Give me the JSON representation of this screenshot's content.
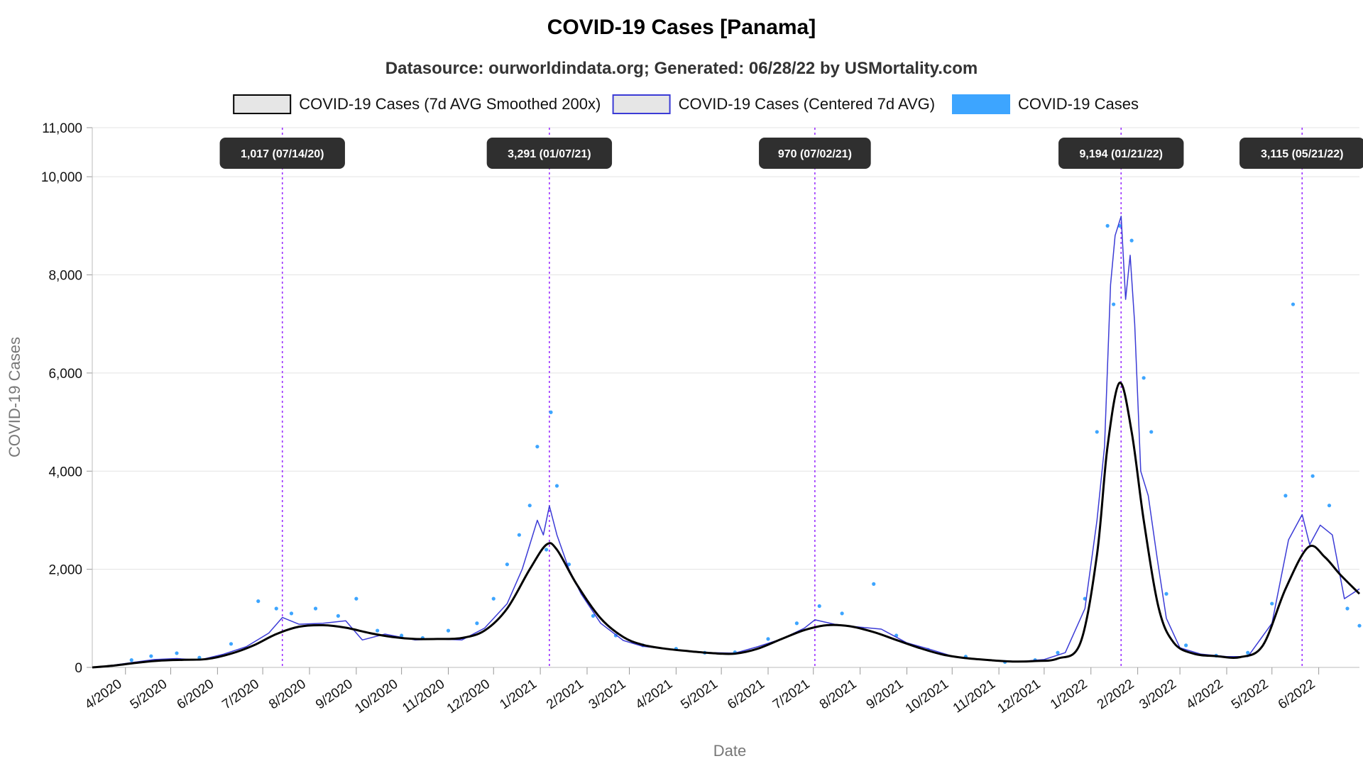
{
  "chart_data": {
    "type": "line",
    "title": "COVID-19 Cases [Panama]",
    "subtitle": "Datasource: ourworldindata.org; Generated: 06/28/22 by USMortality.com",
    "xlabel": "Date",
    "ylabel": "COVID-19 Cases",
    "ylim": [
      0,
      11000
    ],
    "y_ticks": [
      0,
      2000,
      4000,
      6000,
      8000,
      10000,
      11000
    ],
    "y_tick_labels": [
      "0",
      "2,000",
      "4,000",
      "6,000",
      "8,000",
      "10,000",
      "11,000"
    ],
    "x_range": [
      "2020-03-10",
      "2022-06-28"
    ],
    "x_ticks": [
      {
        "date": "2020-04-01",
        "label": "4/2020"
      },
      {
        "date": "2020-05-01",
        "label": "5/2020"
      },
      {
        "date": "2020-06-01",
        "label": "6/2020"
      },
      {
        "date": "2020-07-01",
        "label": "7/2020"
      },
      {
        "date": "2020-08-01",
        "label": "8/2020"
      },
      {
        "date": "2020-09-01",
        "label": "9/2020"
      },
      {
        "date": "2020-10-01",
        "label": "10/2020"
      },
      {
        "date": "2020-11-01",
        "label": "11/2020"
      },
      {
        "date": "2020-12-01",
        "label": "12/2020"
      },
      {
        "date": "2021-01-01",
        "label": "1/2021"
      },
      {
        "date": "2021-02-01",
        "label": "2/2021"
      },
      {
        "date": "2021-03-01",
        "label": "3/2021"
      },
      {
        "date": "2021-04-01",
        "label": "4/2021"
      },
      {
        "date": "2021-05-01",
        "label": "5/2021"
      },
      {
        "date": "2021-06-01",
        "label": "6/2021"
      },
      {
        "date": "2021-07-01",
        "label": "7/2021"
      },
      {
        "date": "2021-08-01",
        "label": "8/2021"
      },
      {
        "date": "2021-09-01",
        "label": "9/2021"
      },
      {
        "date": "2021-10-01",
        "label": "10/2021"
      },
      {
        "date": "2021-11-01",
        "label": "11/2021"
      },
      {
        "date": "2021-12-01",
        "label": "12/2021"
      },
      {
        "date": "2022-01-01",
        "label": "1/2022"
      },
      {
        "date": "2022-02-01",
        "label": "2/2022"
      },
      {
        "date": "2022-03-01",
        "label": "3/2022"
      },
      {
        "date": "2022-04-01",
        "label": "4/2022"
      },
      {
        "date": "2022-05-01",
        "label": "5/2022"
      },
      {
        "date": "2022-06-01",
        "label": "6/2022"
      }
    ],
    "grid": true,
    "legend_position": "top-center",
    "legend": [
      {
        "label": "COVID-19 Cases (7d AVG Smoothed 200x)",
        "stroke": "#000000",
        "fill": "#e6e6e6"
      },
      {
        "label": "COVID-19 Cases (Centered 7d AVG)",
        "stroke": "#3b3bd6",
        "fill": "#e6e6e6"
      },
      {
        "label": "COVID-19 Cases",
        "stroke": "#3da5ff",
        "fill": "#3da5ff"
      }
    ],
    "annotations": [
      {
        "date": "2020-07-14",
        "label": "1,017 (07/14/20)"
      },
      {
        "date": "2021-01-07",
        "label": "3,291 (01/07/21)"
      },
      {
        "date": "2021-07-02",
        "label": "970 (07/02/21)"
      },
      {
        "date": "2022-01-21",
        "label": "9,194 (01/21/22)"
      },
      {
        "date": "2022-05-21",
        "label": "3,115 (05/21/22)"
      }
    ],
    "series": [
      {
        "name": "COVID-19 Cases (7d AVG Smoothed 200x)",
        "color": "#000000",
        "points": [
          [
            "2020-03-10",
            0
          ],
          [
            "2020-03-25",
            40
          ],
          [
            "2020-04-10",
            100
          ],
          [
            "2020-04-25",
            140
          ],
          [
            "2020-05-10",
            155
          ],
          [
            "2020-05-25",
            170
          ],
          [
            "2020-06-10",
            280
          ],
          [
            "2020-06-25",
            450
          ],
          [
            "2020-07-10",
            680
          ],
          [
            "2020-07-25",
            830
          ],
          [
            "2020-08-10",
            860
          ],
          [
            "2020-08-25",
            810
          ],
          [
            "2020-09-10",
            700
          ],
          [
            "2020-09-25",
            620
          ],
          [
            "2020-10-10",
            580
          ],
          [
            "2020-10-25",
            580
          ],
          [
            "2020-11-10",
            600
          ],
          [
            "2020-11-25",
            750
          ],
          [
            "2020-12-10",
            1200
          ],
          [
            "2020-12-25",
            2000
          ],
          [
            "2021-01-05",
            2500
          ],
          [
            "2021-01-12",
            2400
          ],
          [
            "2021-01-25",
            1700
          ],
          [
            "2021-02-10",
            1000
          ],
          [
            "2021-02-25",
            620
          ],
          [
            "2021-03-10",
            460
          ],
          [
            "2021-03-25",
            380
          ],
          [
            "2021-04-10",
            330
          ],
          [
            "2021-04-25",
            290
          ],
          [
            "2021-05-10",
            280
          ],
          [
            "2021-05-25",
            380
          ],
          [
            "2021-06-10",
            580
          ],
          [
            "2021-06-25",
            760
          ],
          [
            "2021-07-10",
            860
          ],
          [
            "2021-07-25",
            840
          ],
          [
            "2021-08-10",
            720
          ],
          [
            "2021-08-25",
            560
          ],
          [
            "2021-09-10",
            390
          ],
          [
            "2021-09-25",
            260
          ],
          [
            "2021-10-10",
            190
          ],
          [
            "2021-10-25",
            150
          ],
          [
            "2021-11-10",
            120
          ],
          [
            "2021-11-25",
            130
          ],
          [
            "2021-12-10",
            180
          ],
          [
            "2021-12-25",
            500
          ],
          [
            "2022-01-05",
            2300
          ],
          [
            "2022-01-12",
            4500
          ],
          [
            "2022-01-20",
            5800
          ],
          [
            "2022-01-28",
            4800
          ],
          [
            "2022-02-05",
            3000
          ],
          [
            "2022-02-15",
            1200
          ],
          [
            "2022-02-25",
            500
          ],
          [
            "2022-03-10",
            280
          ],
          [
            "2022-03-25",
            230
          ],
          [
            "2022-04-10",
            210
          ],
          [
            "2022-04-25",
            450
          ],
          [
            "2022-05-10",
            1600
          ],
          [
            "2022-05-25",
            2450
          ],
          [
            "2022-06-05",
            2250
          ],
          [
            "2022-06-15",
            1900
          ],
          [
            "2022-06-28",
            1500
          ]
        ]
      },
      {
        "name": "COVID-19 Cases (Centered 7d AVG)",
        "color": "#3b3bd6",
        "points": [
          [
            "2020-03-12",
            5
          ],
          [
            "2020-03-25",
            50
          ],
          [
            "2020-04-08",
            110
          ],
          [
            "2020-04-20",
            160
          ],
          [
            "2020-05-05",
            180
          ],
          [
            "2020-05-20",
            150
          ],
          [
            "2020-06-05",
            270
          ],
          [
            "2020-06-20",
            420
          ],
          [
            "2020-07-05",
            700
          ],
          [
            "2020-07-14",
            1017
          ],
          [
            "2020-07-25",
            880
          ],
          [
            "2020-08-10",
            900
          ],
          [
            "2020-08-25",
            950
          ],
          [
            "2020-09-05",
            560
          ],
          [
            "2020-09-20",
            680
          ],
          [
            "2020-10-10",
            560
          ],
          [
            "2020-10-25",
            580
          ],
          [
            "2020-11-10",
            560
          ],
          [
            "2020-11-25",
            800
          ],
          [
            "2020-12-10",
            1300
          ],
          [
            "2020-12-20",
            2000
          ],
          [
            "2020-12-25",
            2500
          ],
          [
            "2020-12-30",
            3000
          ],
          [
            "2021-01-03",
            2700
          ],
          [
            "2021-01-07",
            3291
          ],
          [
            "2021-01-12",
            2700
          ],
          [
            "2021-01-20",
            2000
          ],
          [
            "2021-01-28",
            1500
          ],
          [
            "2021-02-10",
            900
          ],
          [
            "2021-02-25",
            550
          ],
          [
            "2021-03-10",
            430
          ],
          [
            "2021-03-25",
            380
          ],
          [
            "2021-04-10",
            330
          ],
          [
            "2021-04-25",
            300
          ],
          [
            "2021-05-10",
            290
          ],
          [
            "2021-05-25",
            420
          ],
          [
            "2021-06-10",
            580
          ],
          [
            "2021-06-25",
            800
          ],
          [
            "2021-07-02",
            970
          ],
          [
            "2021-07-15",
            880
          ],
          [
            "2021-08-01",
            820
          ],
          [
            "2021-08-15",
            780
          ],
          [
            "2021-09-01",
            500
          ],
          [
            "2021-09-15",
            380
          ],
          [
            "2021-10-01",
            230
          ],
          [
            "2021-10-15",
            170
          ],
          [
            "2021-11-01",
            140
          ],
          [
            "2021-11-15",
            120
          ],
          [
            "2021-12-01",
            160
          ],
          [
            "2021-12-15",
            300
          ],
          [
            "2021-12-28",
            1200
          ],
          [
            "2022-01-05",
            3000
          ],
          [
            "2022-01-10",
            4500
          ],
          [
            "2022-01-14",
            7800
          ],
          [
            "2022-01-17",
            8800
          ],
          [
            "2022-01-21",
            9194
          ],
          [
            "2022-01-24",
            7500
          ],
          [
            "2022-01-27",
            8400
          ],
          [
            "2022-01-30",
            7000
          ],
          [
            "2022-02-03",
            4000
          ],
          [
            "2022-02-08",
            3500
          ],
          [
            "2022-02-14",
            2200
          ],
          [
            "2022-02-20",
            1000
          ],
          [
            "2022-03-01",
            400
          ],
          [
            "2022-03-15",
            270
          ],
          [
            "2022-04-01",
            220
          ],
          [
            "2022-04-15",
            220
          ],
          [
            "2022-05-01",
            900
          ],
          [
            "2022-05-12",
            2600
          ],
          [
            "2022-05-21",
            3115
          ],
          [
            "2022-05-26",
            2500
          ],
          [
            "2022-06-02",
            2900
          ],
          [
            "2022-06-10",
            2700
          ],
          [
            "2022-06-18",
            1400
          ],
          [
            "2022-06-28",
            1600
          ]
        ]
      },
      {
        "name": "COVID-19 Cases",
        "color": "#3da5ff",
        "points": [
          [
            "2020-04-05",
            150
          ],
          [
            "2020-04-18",
            230
          ],
          [
            "2020-05-05",
            290
          ],
          [
            "2020-05-20",
            200
          ],
          [
            "2020-06-10",
            480
          ],
          [
            "2020-06-28",
            1350
          ],
          [
            "2020-07-10",
            1200
          ],
          [
            "2020-07-20",
            1100
          ],
          [
            "2020-08-05",
            1200
          ],
          [
            "2020-08-20",
            1050
          ],
          [
            "2020-09-01",
            1400
          ],
          [
            "2020-09-15",
            750
          ],
          [
            "2020-10-01",
            650
          ],
          [
            "2020-10-15",
            600
          ],
          [
            "2020-11-01",
            750
          ],
          [
            "2020-11-20",
            900
          ],
          [
            "2020-12-01",
            1400
          ],
          [
            "2020-12-10",
            2100
          ],
          [
            "2020-12-18",
            2700
          ],
          [
            "2020-12-25",
            3300
          ],
          [
            "2020-12-30",
            4500
          ],
          [
            "2021-01-05",
            2400
          ],
          [
            "2021-01-08",
            5200
          ],
          [
            "2021-01-12",
            3700
          ],
          [
            "2021-01-20",
            2100
          ],
          [
            "2021-02-05",
            1050
          ],
          [
            "2021-02-20",
            650
          ],
          [
            "2021-03-10",
            450
          ],
          [
            "2021-04-01",
            380
          ],
          [
            "2021-04-20",
            300
          ],
          [
            "2021-05-10",
            310
          ],
          [
            "2021-06-01",
            580
          ],
          [
            "2021-06-20",
            900
          ],
          [
            "2021-07-05",
            1250
          ],
          [
            "2021-07-20",
            1100
          ],
          [
            "2021-08-10",
            1700
          ],
          [
            "2021-08-25",
            650
          ],
          [
            "2021-09-15",
            360
          ],
          [
            "2021-10-10",
            220
          ],
          [
            "2021-11-05",
            110
          ],
          [
            "2021-11-25",
            150
          ],
          [
            "2021-12-10",
            300
          ],
          [
            "2021-12-28",
            1400
          ],
          [
            "2022-01-05",
            4800
          ],
          [
            "2022-01-12",
            9000
          ],
          [
            "2022-01-16",
            7400
          ],
          [
            "2022-01-20",
            9000
          ],
          [
            "2022-01-28",
            8700
          ],
          [
            "2022-02-05",
            5900
          ],
          [
            "2022-02-10",
            4800
          ],
          [
            "2022-02-20",
            1500
          ],
          [
            "2022-03-05",
            450
          ],
          [
            "2022-03-25",
            240
          ],
          [
            "2022-04-15",
            300
          ],
          [
            "2022-05-01",
            1300
          ],
          [
            "2022-05-10",
            3500
          ],
          [
            "2022-05-15",
            7400
          ],
          [
            "2022-05-28",
            3900
          ],
          [
            "2022-06-08",
            3300
          ],
          [
            "2022-06-20",
            1200
          ],
          [
            "2022-06-28",
            850
          ]
        ]
      }
    ]
  }
}
